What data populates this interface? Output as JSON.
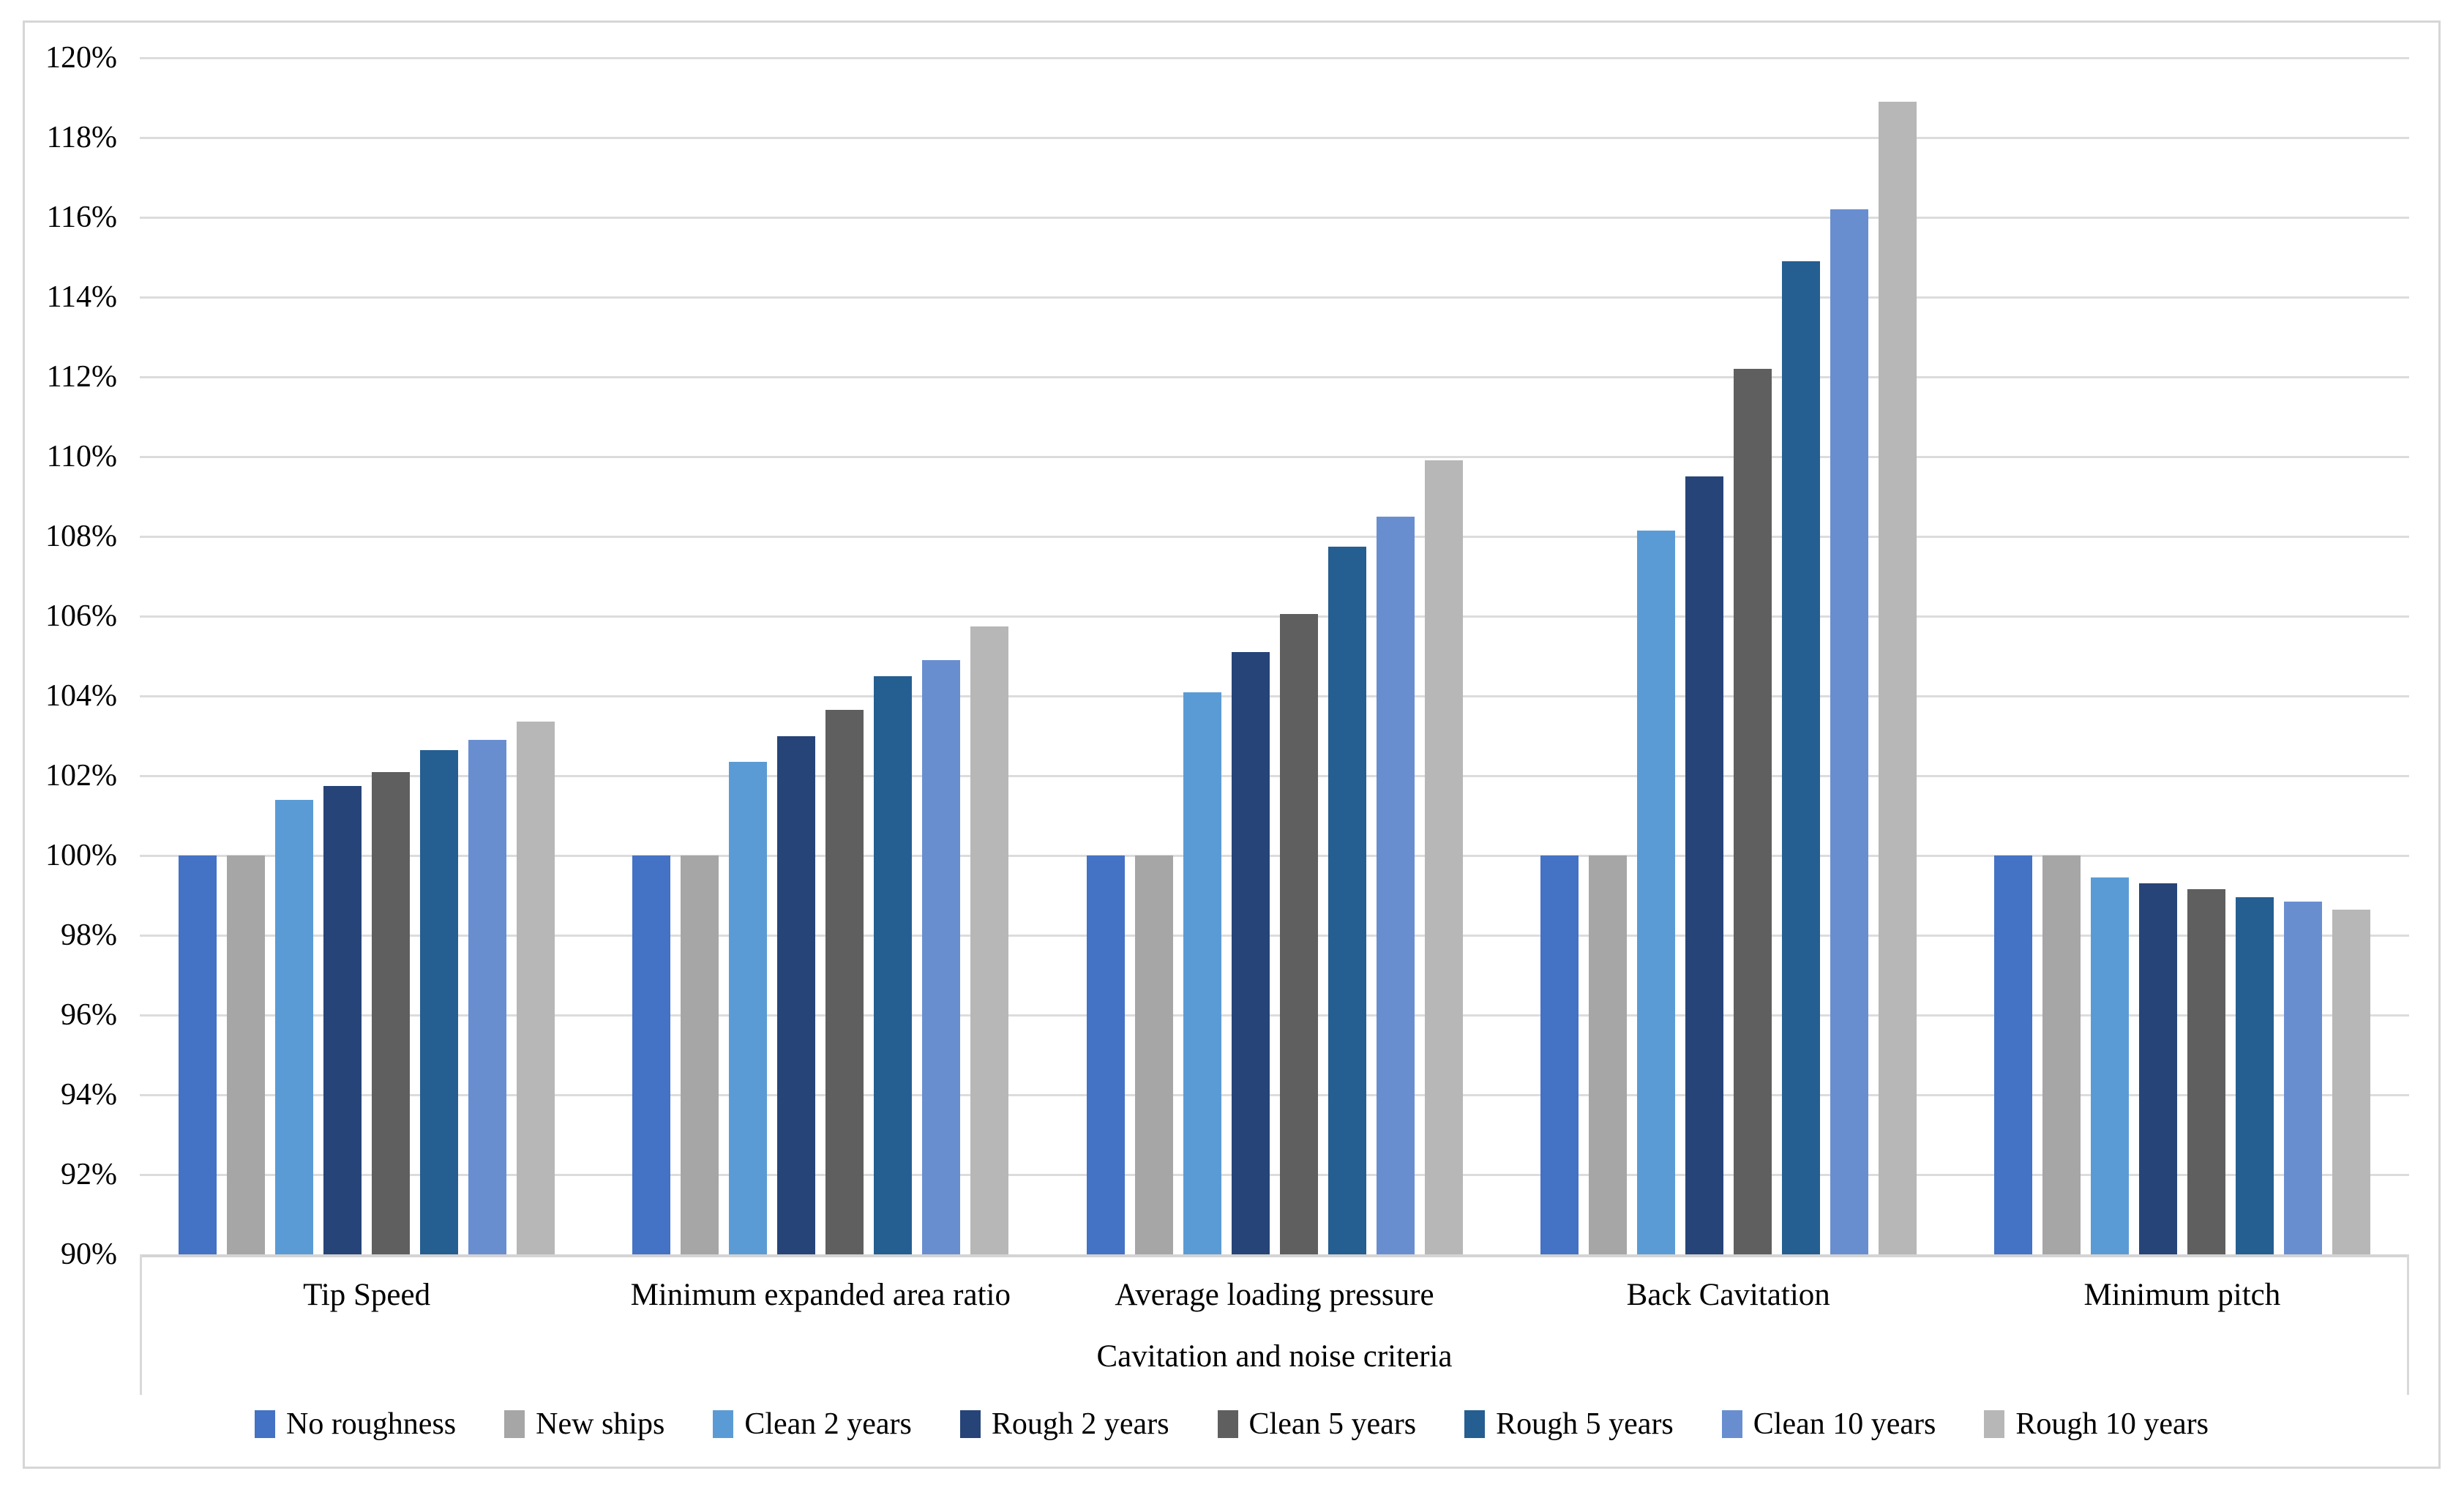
{
  "chart_data": {
    "type": "bar",
    "title": "",
    "xlabel": "Cavitation and noise criteria",
    "ylabel": "",
    "ylim": [
      90,
      120
    ],
    "ytick_step": 2,
    "y_tick_labels": [
      "90%",
      "92%",
      "94%",
      "96%",
      "98%",
      "100%",
      "102%",
      "104%",
      "106%",
      "108%",
      "110%",
      "112%",
      "114%",
      "116%",
      "118%",
      "120%"
    ],
    "grid": true,
    "legend_position": "bottom",
    "categories": [
      "Tip Speed",
      "Minimum expanded area ratio",
      "Average loading pressure",
      "Back Cavitation",
      "Minimum pitch"
    ],
    "series": [
      {
        "name": "No roughness",
        "color": "#4472C4",
        "values": [
          100,
          100,
          100,
          100,
          100
        ]
      },
      {
        "name": "New ships",
        "color": "#A6A6A6",
        "values": [
          100,
          100,
          100,
          100,
          100
        ]
      },
      {
        "name": "Clean 2 years",
        "color": "#5B9BD5",
        "values": [
          101.4,
          102.35,
          104.1,
          108.15,
          99.45
        ]
      },
      {
        "name": "Rough 2 years",
        "color": "#264478",
        "values": [
          101.75,
          103.0,
          105.1,
          109.5,
          99.3
        ]
      },
      {
        "name": "Clean 5 years",
        "color": "#5F5F5F",
        "values": [
          102.1,
          103.65,
          106.05,
          112.2,
          99.15
        ]
      },
      {
        "name": "Rough 5 years",
        "color": "#255E91",
        "values": [
          102.65,
          104.5,
          107.75,
          114.9,
          98.95
        ]
      },
      {
        "name": "Clean 10 years",
        "color": "#698ED0",
        "values": [
          102.9,
          104.9,
          108.5,
          116.2,
          98.85
        ]
      },
      {
        "name": "Rough 10 years",
        "color": "#B7B7B7",
        "values": [
          103.35,
          105.75,
          109.9,
          118.9,
          98.65
        ]
      }
    ],
    "colors": {
      "gridline": "#DCDCDC",
      "axis_line": "#D4D4D4",
      "figure_border": "#D6D6D6",
      "text": "#000000"
    }
  }
}
